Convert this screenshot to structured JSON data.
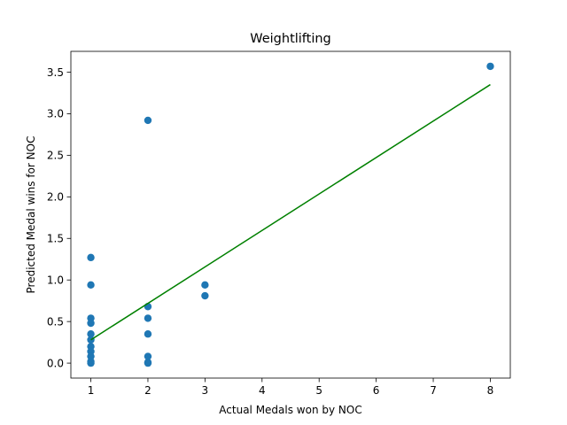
{
  "chart_data": {
    "type": "scatter",
    "title": "Weightlifting",
    "xlabel": "Actual Medals won by NOC",
    "ylabel": "Predicted Medal wins for NOC",
    "xlim": [
      0.65,
      8.35
    ],
    "ylim": [
      -0.18,
      3.75
    ],
    "grid": false,
    "x_ticks": [
      1,
      2,
      3,
      4,
      5,
      6,
      7,
      8
    ],
    "y_ticks": [
      0.0,
      0.5,
      1.0,
      1.5,
      2.0,
      2.5,
      3.0,
      3.5
    ],
    "x_tick_labels": [
      "1",
      "2",
      "3",
      "4",
      "5",
      "6",
      "7",
      "8"
    ],
    "y_tick_labels": [
      "0.0",
      "0.5",
      "1.0",
      "1.5",
      "2.0",
      "2.5",
      "3.0",
      "3.5"
    ],
    "colors": {
      "points": "#1f77b4",
      "fit_line": "#008000"
    },
    "points": [
      {
        "x": 1,
        "y": 1.27
      },
      {
        "x": 1,
        "y": 0.94
      },
      {
        "x": 1,
        "y": 0.54
      },
      {
        "x": 1,
        "y": 0.48
      },
      {
        "x": 1,
        "y": 0.35
      },
      {
        "x": 1,
        "y": 0.28
      },
      {
        "x": 1,
        "y": 0.2
      },
      {
        "x": 1,
        "y": 0.14
      },
      {
        "x": 1,
        "y": 0.08
      },
      {
        "x": 1,
        "y": 0.02
      },
      {
        "x": 1,
        "y": 0.0
      },
      {
        "x": 2,
        "y": 2.92
      },
      {
        "x": 2,
        "y": 0.68
      },
      {
        "x": 2,
        "y": 0.54
      },
      {
        "x": 2,
        "y": 0.35
      },
      {
        "x": 2,
        "y": 0.08
      },
      {
        "x": 2,
        "y": 0.01
      },
      {
        "x": 2,
        "y": 0.0
      },
      {
        "x": 3,
        "y": 0.94
      },
      {
        "x": 3,
        "y": 0.81
      },
      {
        "x": 8,
        "y": 3.57
      }
    ],
    "fit_line": {
      "x": [
        1,
        8
      ],
      "y": [
        0.28,
        3.35
      ]
    }
  }
}
